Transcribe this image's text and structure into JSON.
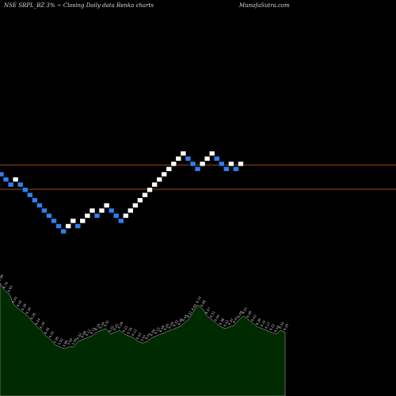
{
  "header": {
    "left": "NSE SRPL_BZ 3% ~ Closing Daily data  Renko  charts",
    "right": "MunafaSutra.com"
  },
  "colors": {
    "up_brick": "#ffffff",
    "down_brick": "#2f7ff0",
    "reference_line": "#9b4a1e",
    "volume_fill": "#002b00",
    "volume_stroke": "#bcbcbc",
    "background": "#000000"
  },
  "chart_data": {
    "type": "renko",
    "brick_size_percent": 3,
    "bricks": [
      {
        "dir": "down",
        "level": 0
      },
      {
        "dir": "down",
        "level": -1
      },
      {
        "dir": "down",
        "level": -2
      },
      {
        "dir": "up",
        "level": -1
      },
      {
        "dir": "down",
        "level": -2
      },
      {
        "dir": "down",
        "level": -3
      },
      {
        "dir": "down",
        "level": -4
      },
      {
        "dir": "down",
        "level": -5
      },
      {
        "dir": "down",
        "level": -6
      },
      {
        "dir": "down",
        "level": -7
      },
      {
        "dir": "down",
        "level": -8
      },
      {
        "dir": "down",
        "level": -9
      },
      {
        "dir": "down",
        "level": -10
      },
      {
        "dir": "down",
        "level": -11
      },
      {
        "dir": "up",
        "level": -10
      },
      {
        "dir": "up",
        "level": -9
      },
      {
        "dir": "down",
        "level": -10
      },
      {
        "dir": "up",
        "level": -9
      },
      {
        "dir": "up",
        "level": -8
      },
      {
        "dir": "up",
        "level": -7
      },
      {
        "dir": "down",
        "level": -8
      },
      {
        "dir": "up",
        "level": -7
      },
      {
        "dir": "up",
        "level": -6
      },
      {
        "dir": "down",
        "level": -7
      },
      {
        "dir": "down",
        "level": -8
      },
      {
        "dir": "down",
        "level": -9
      },
      {
        "dir": "up",
        "level": -8
      },
      {
        "dir": "up",
        "level": -7
      },
      {
        "dir": "up",
        "level": -6
      },
      {
        "dir": "up",
        "level": -5
      },
      {
        "dir": "up",
        "level": -4
      },
      {
        "dir": "up",
        "level": -3
      },
      {
        "dir": "up",
        "level": -2
      },
      {
        "dir": "up",
        "level": -1
      },
      {
        "dir": "up",
        "level": 0
      },
      {
        "dir": "up",
        "level": 1
      },
      {
        "dir": "up",
        "level": 2
      },
      {
        "dir": "up",
        "level": 3
      },
      {
        "dir": "up",
        "level": 4
      },
      {
        "dir": "down",
        "level": 3
      },
      {
        "dir": "down",
        "level": 2
      },
      {
        "dir": "down",
        "level": 1
      },
      {
        "dir": "up",
        "level": 2
      },
      {
        "dir": "up",
        "level": 3
      },
      {
        "dir": "up",
        "level": 4
      },
      {
        "dir": "down",
        "level": 3
      },
      {
        "dir": "down",
        "level": 2
      },
      {
        "dir": "down",
        "level": 1
      },
      {
        "dir": "up",
        "level": 2
      },
      {
        "dir": "down",
        "level": 1
      },
      {
        "dir": "up",
        "level": 2
      }
    ],
    "reference_levels": [
      1.8,
      -2.9
    ],
    "volume": {
      "values": [
        42,
        38,
        36,
        30,
        28,
        26,
        24,
        21,
        18,
        16,
        13,
        11,
        8,
        7,
        6,
        7,
        7,
        10,
        11,
        12,
        13,
        15,
        16,
        17,
        14,
        15,
        16,
        14,
        13,
        12,
        10,
        9,
        10,
        12,
        13,
        14,
        15,
        16,
        17,
        18,
        20,
        22,
        26,
        30,
        28,
        24,
        22,
        20,
        18,
        17,
        18,
        19,
        22,
        24,
        22,
        20,
        18,
        17,
        16,
        15,
        14,
        16,
        15
      ],
      "labels": [
        "6.96",
        "6.74",
        "6.63",
        "6.55",
        "6.42",
        "6.39",
        "6.34",
        "6.28",
        "6.24",
        "6.18",
        "6.05",
        "6.01",
        "5.95",
        "5.92",
        "5.89",
        "5.93",
        "5.95",
        "6.02",
        "6.08",
        "6.11",
        "6.15",
        "6.19",
        "6.24",
        "6.31",
        "6.22",
        "6.25",
        "6.28",
        "6.21",
        "6.16",
        "6.12",
        "6.03",
        "5.97",
        "6.01",
        "6.09",
        "6.13",
        "6.18",
        "6.24",
        "6.29",
        "6.33",
        "6.38",
        "6.45",
        "6.52",
        "6.61",
        "6.74",
        "6.68",
        "6.57",
        "6.51",
        "6.44",
        "6.38",
        "6.33",
        "6.37",
        "6.41",
        "6.49",
        "6.55",
        "6.48",
        "6.42",
        "6.36",
        "6.31",
        "6.27",
        "6.22",
        "6.18",
        "6.24",
        "6.20"
      ]
    }
  }
}
